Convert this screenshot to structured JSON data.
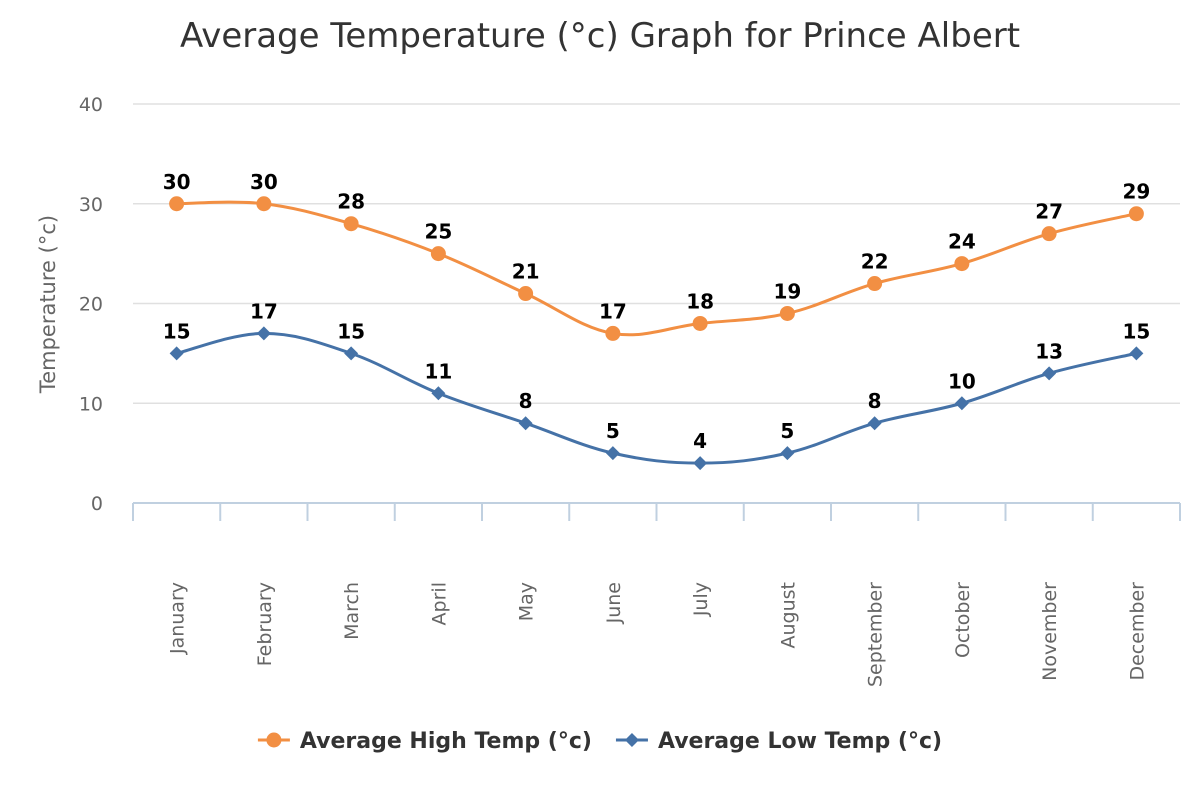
{
  "chart_data": {
    "type": "line",
    "title": "Average Temperature (°c) Graph for Prince Albert",
    "ylabel": "Temperature (°c)",
    "xlabel": "",
    "ylim": [
      0,
      40
    ],
    "yticks": [
      0,
      10,
      20,
      30,
      40
    ],
    "grid": true,
    "legend_position": "bottom-center",
    "categories": [
      "January",
      "February",
      "March",
      "April",
      "May",
      "June",
      "July",
      "August",
      "September",
      "October",
      "November",
      "December"
    ],
    "series": [
      {
        "name": "Average High Temp (°c)",
        "values": [
          30,
          30,
          28,
          25,
          21,
          17,
          18,
          19,
          22,
          24,
          27,
          29
        ],
        "color": "#f28f43",
        "marker": "circle"
      },
      {
        "name": "Average Low Temp (°c)",
        "values": [
          15,
          17,
          15,
          11,
          8,
          5,
          4,
          5,
          8,
          10,
          13,
          15
        ],
        "color": "#4572a7",
        "marker": "diamond"
      }
    ],
    "colors": {
      "grid": "#e0e0e0",
      "axis": "#c0d0e0",
      "title": "#333333",
      "label": "#666666"
    }
  }
}
